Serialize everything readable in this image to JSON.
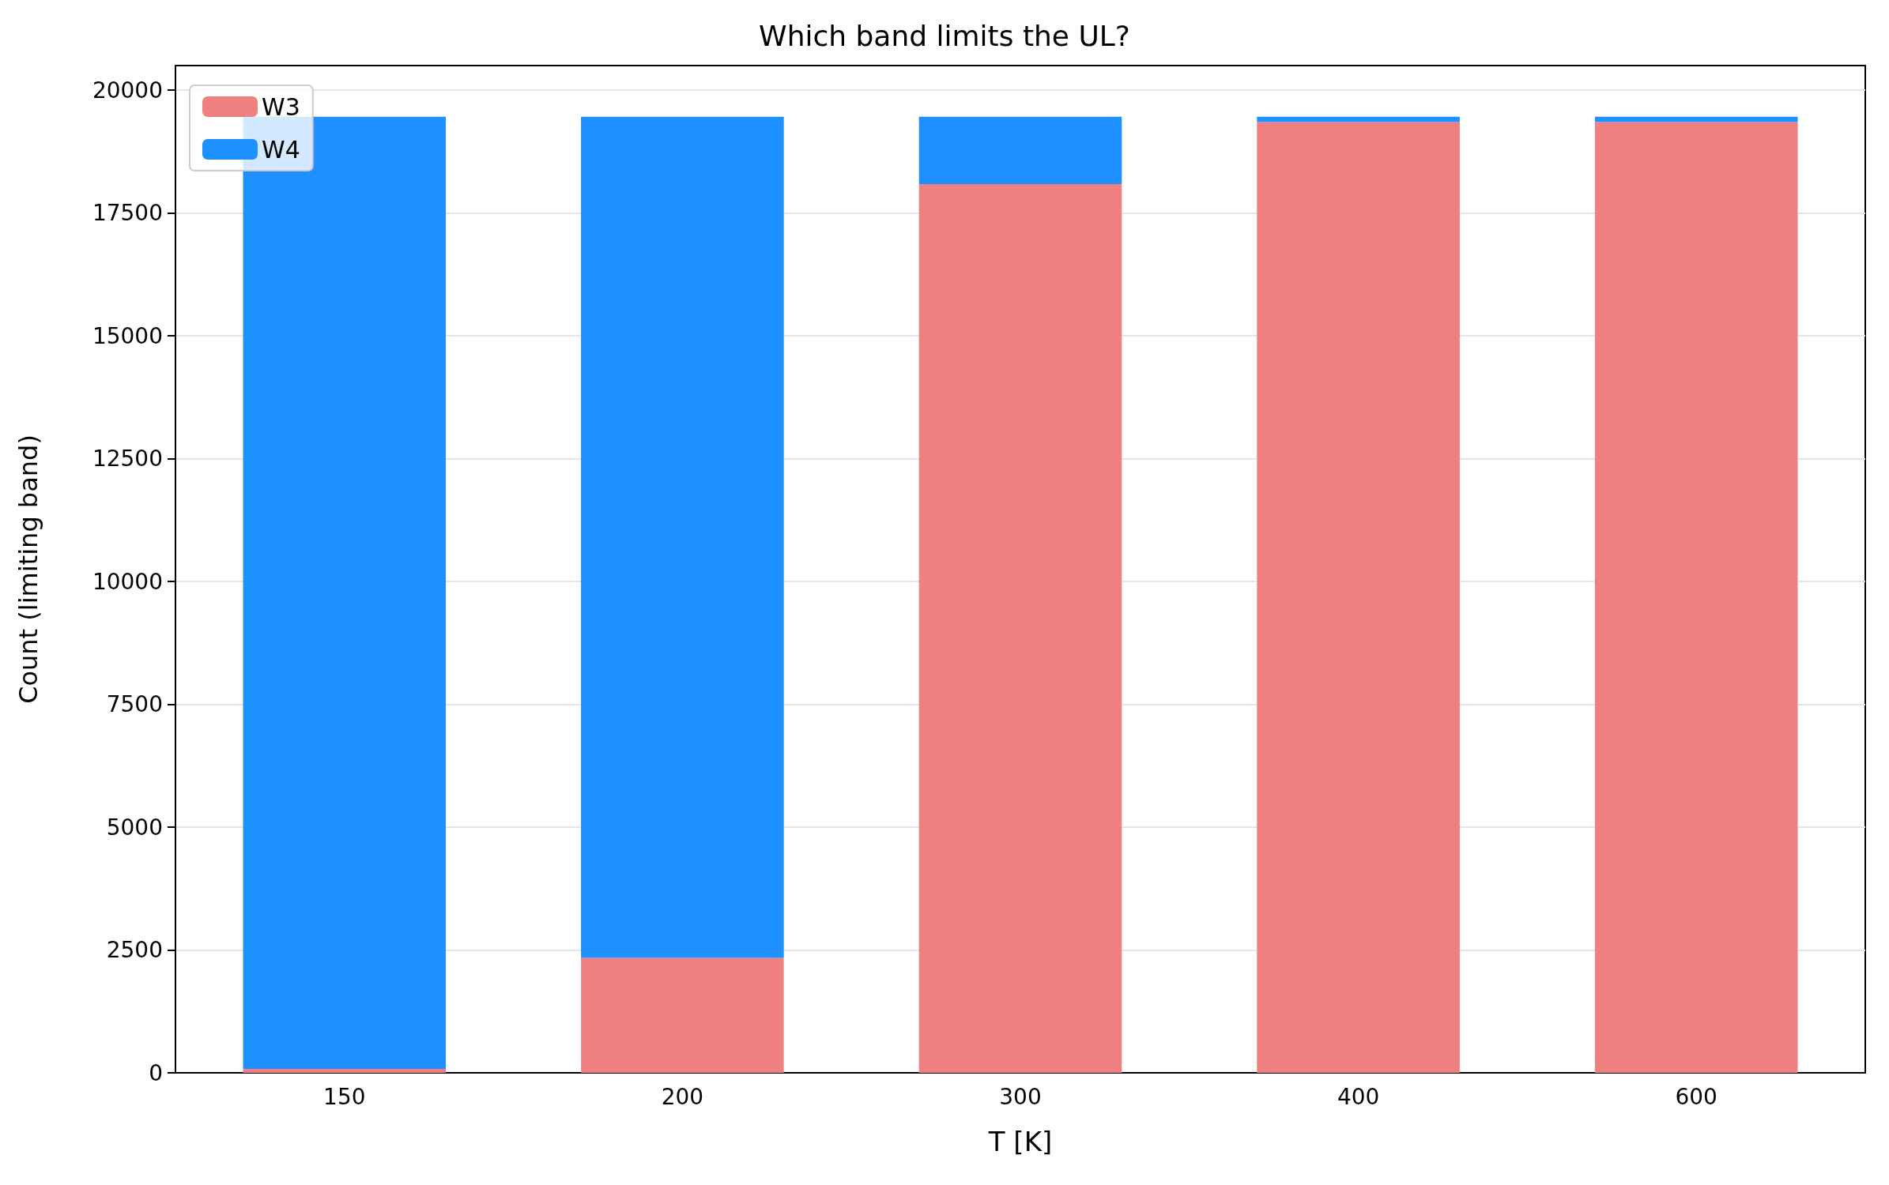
{
  "chart_data": {
    "type": "bar",
    "title": "Which band limits the UL?",
    "xlabel": "T [K]",
    "ylabel": "Count (limiting band)",
    "categories": [
      "150",
      "200",
      "300",
      "400",
      "600"
    ],
    "stacked": true,
    "series": [
      {
        "name": "W3",
        "color": "#f08080",
        "values": [
          80,
          2340,
          18090,
          19350,
          19350
        ]
      },
      {
        "name": "W4",
        "color": "#1e90ff",
        "values": [
          19380,
          17120,
          1370,
          110,
          110
        ]
      }
    ],
    "ylim": [
      0,
      20500
    ],
    "yticks": [
      0,
      2500,
      5000,
      7500,
      10000,
      12500,
      15000,
      17500,
      20000
    ],
    "grid": "y",
    "legend": "top left"
  }
}
